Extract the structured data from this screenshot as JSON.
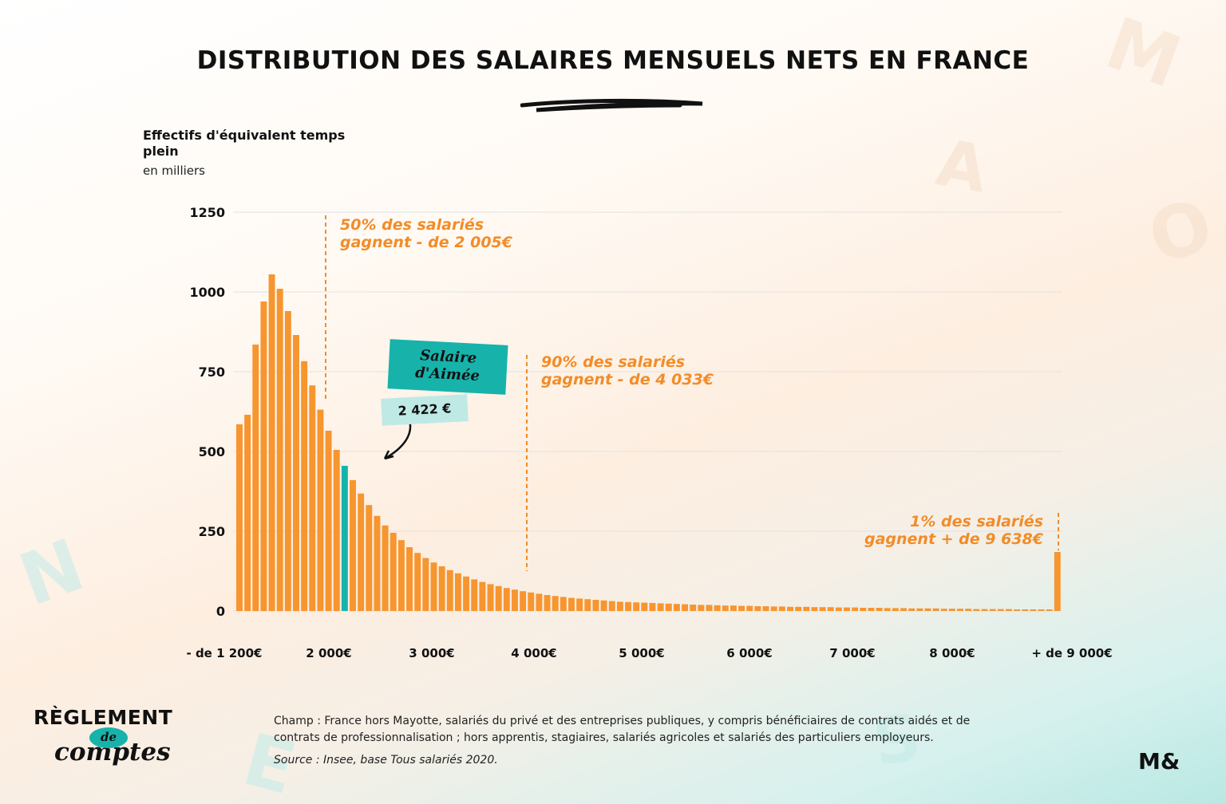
{
  "title": "DISTRIBUTION DES SALAIRES MENSUELS NETS EN FRANCE",
  "colors": {
    "bar": "#f7952f",
    "highlight": "#17b3ab",
    "annotation": "#f28c28",
    "grid": "#e2e2e2"
  },
  "chart_data": {
    "type": "bar",
    "ylabel": "Effectifs d'équivalent temps plein",
    "yunit": "en milliers",
    "ylim": [
      0,
      1250
    ],
    "yticks": [
      "0",
      "250",
      "500",
      "750",
      "1000",
      "1250"
    ],
    "grid": true,
    "xticks": [
      "- de 1 200€",
      "2 000€",
      "3 000€",
      "4 000€",
      "5 000€",
      "6 000€",
      "7 000€",
      "8 000€",
      "+  de 9 000€"
    ],
    "values": [
      585,
      615,
      835,
      970,
      1055,
      1010,
      940,
      865,
      783,
      707,
      631,
      565,
      505,
      455,
      410,
      368,
      332,
      298,
      268,
      245,
      222,
      200,
      182,
      166,
      152,
      140,
      128,
      118,
      108,
      99,
      91,
      84,
      78,
      72,
      67,
      62,
      58,
      54,
      50,
      47,
      44,
      41,
      39,
      37,
      35,
      33,
      31,
      29,
      28,
      27,
      26,
      25,
      24,
      23,
      22,
      21,
      20,
      19,
      19,
      18,
      17,
      17,
      16,
      16,
      15,
      15,
      14,
      14,
      13,
      13,
      13,
      12,
      12,
      12,
      11,
      11,
      11,
      10,
      10,
      10,
      9,
      9,
      9,
      8,
      8,
      8,
      8,
      7,
      7,
      7,
      7,
      6,
      6,
      6,
      6,
      6,
      5,
      5,
      5,
      5,
      5,
      185
    ],
    "highlight_index": 13,
    "annotations": [
      {
        "text_line1": "50% des salariés",
        "text_line2": "gagnent - de 2 005€"
      },
      {
        "text_line1": "90% des salariés",
        "text_line2": "gagnent - de 4 033€"
      },
      {
        "text_line1": "1% des salariés",
        "text_line2": "gagnent + de 9 638€"
      }
    ],
    "callout": {
      "label": "Salaire\nd'Aimée",
      "value": "2 422 €"
    }
  },
  "footer": {
    "logo_main": "RÈGLEMENT",
    "logo_de": "de",
    "logo_comptes": "comptes",
    "field_note": "Champ : France hors Mayotte, salariés du privé et des entreprises publiques, y compris bénéficiaires de contrats aidés et de contrats de professionnalisation ; hors apprentis, stagiaires, salariés agricoles et salariés des particuliers employeurs.",
    "source": "Source : Insee, base Tous salariés 2020.",
    "brand_mark": "M&"
  }
}
